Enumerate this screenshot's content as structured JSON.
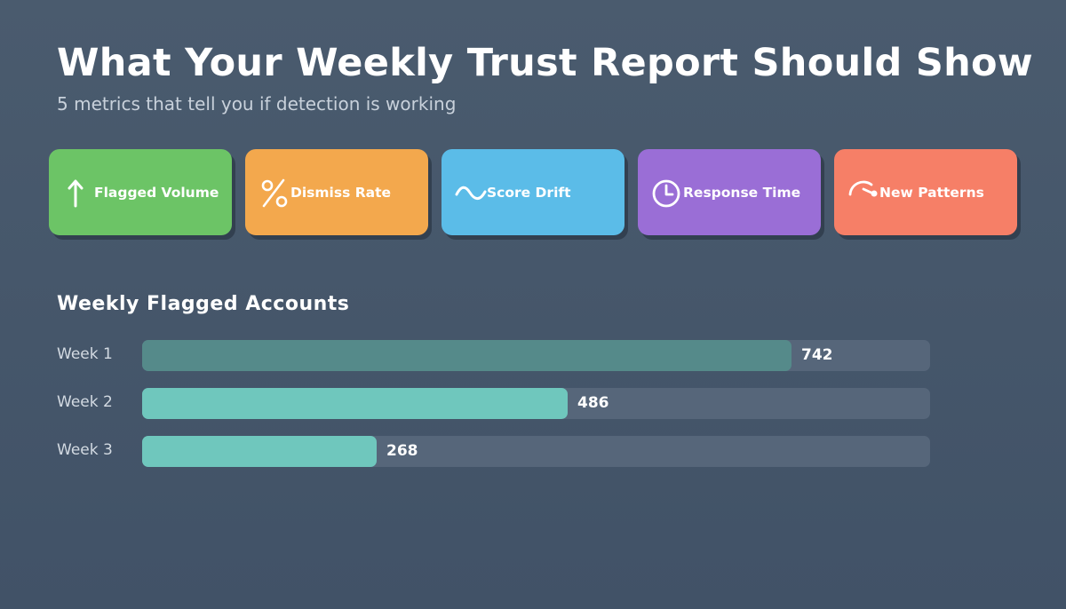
{
  "title": "What Your Weekly Trust Report Should Show",
  "subtitle": "5 metrics that tell you if detection is working",
  "metrics": [
    {
      "label": "Flagged Volume",
      "icon": "arrow-up-icon",
      "color": "#6cc466"
    },
    {
      "label": "Dismiss Rate",
      "icon": "percent-icon",
      "color": "#f3a84d"
    },
    {
      "label": "Score Drift",
      "icon": "wave-icon",
      "color": "#5bbce8"
    },
    {
      "label": "Response Time",
      "icon": "clock-icon",
      "color": "#9a6ed6"
    },
    {
      "label": "New Patterns",
      "icon": "gauge-icon",
      "color": "#f67f67"
    }
  ],
  "chart_data": {
    "type": "bar",
    "orientation": "horizontal",
    "title": "Weekly Flagged Accounts",
    "categories": [
      "Week 1",
      "Week 2",
      "Week 3"
    ],
    "values": [
      742,
      486,
      268
    ],
    "xlim": [
      0,
      900
    ],
    "bar_colors": [
      "#558a8a",
      "#6fc7bd",
      "#6fc7bd"
    ],
    "track_color": "#56667a",
    "grid": false
  }
}
